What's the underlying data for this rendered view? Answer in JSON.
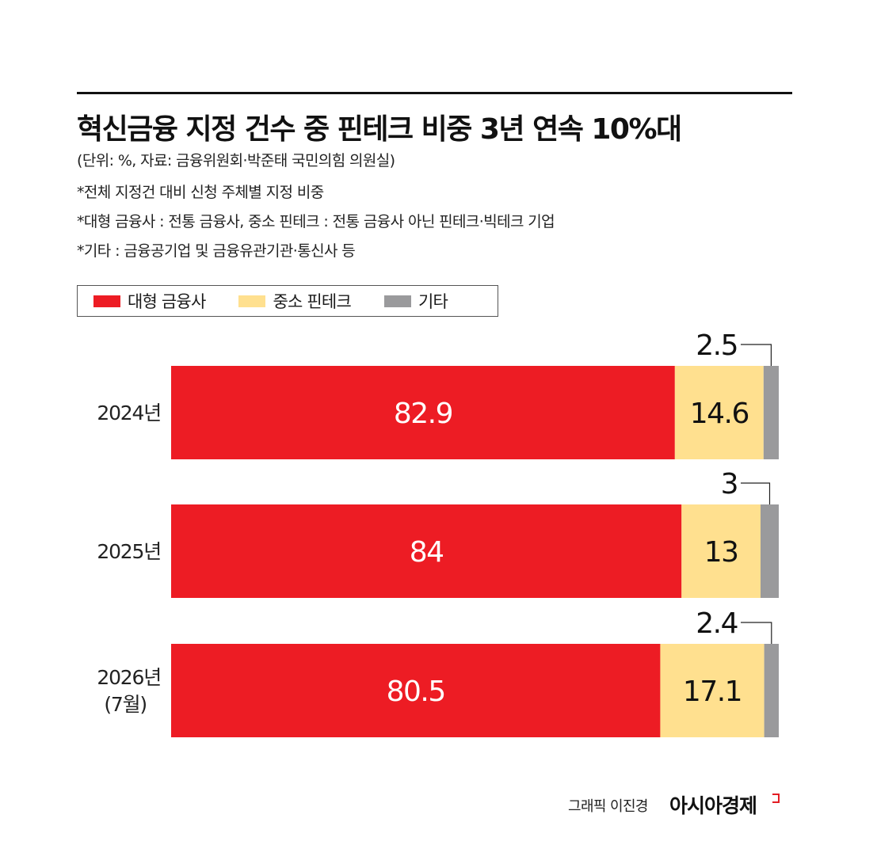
{
  "header": {
    "title": "혁신금융 지정 건수 중 핀테크 비중 3년 연속 10%대",
    "notes": [
      "(단위: %, 자료: 금융위원회·박준태 국민의힘 의원실)",
      "*전체 지정건 대비 신청 주체별 지정 비중",
      "*대형 금융사 : 전통 금융사, 중소 핀테크 : 전통 금융사 아닌 핀테크·빅테크 기업",
      "*기타 : 금융공기업 및 금융유관기관·통신사 등"
    ]
  },
  "colors": {
    "large_financial": "#ed1c24",
    "small_fintech": "#ffe08f",
    "other": "#9a9a9c"
  },
  "chart_data": {
    "type": "bar",
    "orientation": "horizontal",
    "stacked": true,
    "categories": [
      "2024년",
      "2025년",
      "2026년\n(7월)"
    ],
    "series": [
      {
        "name": "대형 금융사",
        "values": [
          82.9,
          84,
          80.5
        ]
      },
      {
        "name": "중소 핀테크",
        "values": [
          14.6,
          13,
          17.1
        ]
      },
      {
        "name": "기타",
        "values": [
          2.5,
          3,
          2.4
        ]
      }
    ],
    "value_labels": [
      [
        "82.9",
        "84",
        "80.5"
      ],
      [
        "14.6",
        "13",
        "17.1"
      ],
      [
        "2.5",
        "3",
        "2.4"
      ]
    ],
    "xlim": [
      0,
      100
    ],
    "grid": false,
    "legend_position": "top-left"
  },
  "footer": {
    "credit": "그래픽 이진경",
    "logo": "아시아경제"
  }
}
